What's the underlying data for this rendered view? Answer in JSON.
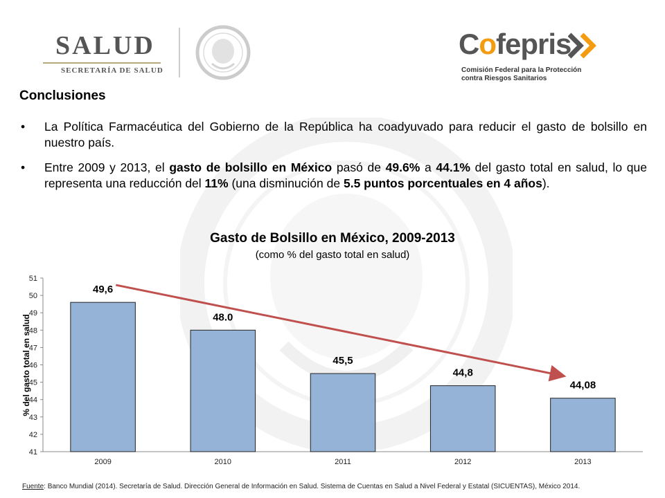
{
  "header": {
    "salud_word": "SALUD",
    "salud_subtitle": "SECRETARÍA DE SALUD",
    "cofepris_word": "Cofepris",
    "cofepris_line1": "Comisión Federal para la Protección",
    "cofepris_line2": "contra Riesgos Sanitarios"
  },
  "content": {
    "heading": "Conclusiones",
    "bullet1": "La Política Farmacéutica del Gobierno de la República ha coadyuvado para reducir el gasto de bolsillo en nuestro país.",
    "bullet2": {
      "t1": "Entre 2009 y 2013, el ",
      "b1": "gasto de bolsillo en México",
      "t2": " pasó de ",
      "b2": "49.6%",
      "t3": " a ",
      "b3": "44.1%",
      "t4": " del gasto total en salud, lo que representa una reducción del ",
      "b4": "11%",
      "t5": " (una disminución de ",
      "b5": "5.5 puntos porcentuales en 4 años",
      "t6": ")."
    }
  },
  "chart_data": {
    "type": "bar",
    "title": "Gasto de Bolsillo en México, 2009-2013",
    "subtitle": "(como % del gasto total en salud)",
    "ylabel": "% del gasto total en salud",
    "xlabel": "",
    "categories": [
      "2009",
      "2010",
      "2011",
      "2012",
      "2013"
    ],
    "values": [
      49.6,
      48.0,
      45.5,
      44.8,
      44.08
    ],
    "data_labels": [
      "49,6",
      "48.0",
      "45,5",
      "44,8",
      "44,08"
    ],
    "ylim": [
      41,
      51
    ],
    "yticks": [
      41,
      42,
      43,
      44,
      45,
      46,
      47,
      48,
      49,
      50,
      51
    ],
    "grid": false,
    "bar_color": "#95b3d7",
    "trend_arrow_color": "#c0504d"
  },
  "source": {
    "label": "Fuente",
    "text": ": Banco Mundial (2014). Secretaría de Salud. Dirección General de Información en Salud. Sistema de Cuentas en Salud a Nivel Federal y Estatal (SICUENTAS), México 2014."
  }
}
